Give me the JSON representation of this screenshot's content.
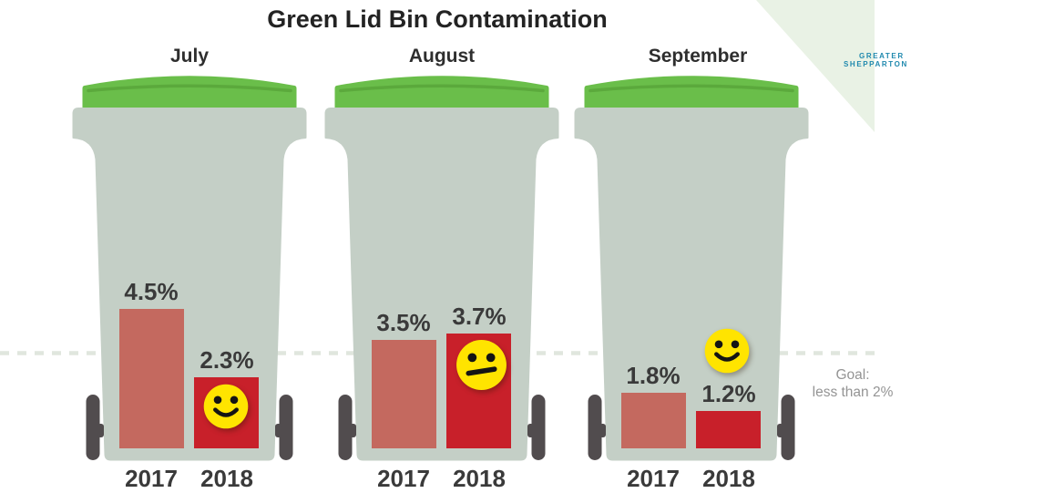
{
  "title": "Green Lid Bin Contamination",
  "logo": {
    "line1": "GREATER",
    "line2": "SHEPPARTON"
  },
  "goal": {
    "line1": "Goal:",
    "line2": "less than 2%"
  },
  "months": [
    {
      "label": "July",
      "mood": "happy",
      "bars": [
        {
          "year": "2017",
          "display": "4.5%"
        },
        {
          "year": "2018",
          "display": "2.3%"
        }
      ]
    },
    {
      "label": "August",
      "mood": "neutral",
      "bars": [
        {
          "year": "2017",
          "display": "3.5%"
        },
        {
          "year": "2018",
          "display": "3.7%"
        }
      ]
    },
    {
      "label": "September",
      "mood": "happy",
      "bars": [
        {
          "year": "2017",
          "display": "1.8%"
        },
        {
          "year": "2018",
          "display": "1.2%"
        }
      ]
    }
  ],
  "chart_data": {
    "type": "bar",
    "title": "Green Lid Bin Contamination",
    "categories": [
      "July",
      "August",
      "September"
    ],
    "series": [
      {
        "name": "2017",
        "values": [
          4.5,
          3.5,
          1.8
        ]
      },
      {
        "name": "2018",
        "values": [
          2.3,
          3.7,
          1.2
        ]
      }
    ],
    "unit": "%",
    "value_labels": [
      [
        "4.5%",
        "2.3%"
      ],
      [
        "3.5%",
        "3.7%"
      ],
      [
        "1.8%",
        "1.2%"
      ]
    ],
    "goal_annotation": "Goal: less than 2%",
    "goal_line_style": "dashed",
    "sentiment_per_month": [
      "happy",
      "neutral",
      "happy"
    ],
    "legend_position": "none",
    "grid": false
  },
  "colors": {
    "lid": "#6abe4a",
    "lidridge": "#5ba93c",
    "body": "#c4cfc6",
    "wheel": "#514c4e",
    "bar2017": "#c4695f",
    "bar2018": "#c8202a",
    "smiley": "#ffe400",
    "goalline": "#e0e6de",
    "logoteal": "#2089ae",
    "corner": "#e9f2e5"
  }
}
